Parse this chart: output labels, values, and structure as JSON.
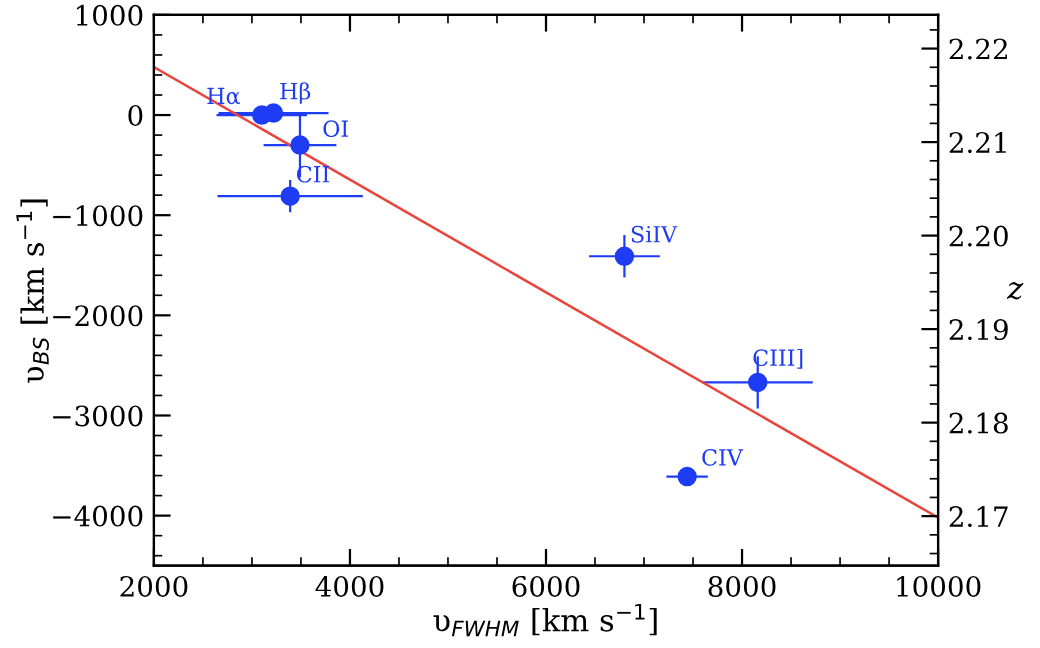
{
  "chart_data": {
    "type": "scatter",
    "xlabel": "υ$_{FWHM}$ [km s$^{−1}$]",
    "ylabel": "υ$_{BS}$ [km s$^{−1}$]",
    "y2label": "z",
    "series": [
      {
        "color": "#1f3cf5",
        "marker": "circle",
        "x": [
          3100,
          3220,
          3490,
          3390,
          6800,
          8160,
          7440
        ],
        "values": [
          0,
          20,
          -300,
          -810,
          -1410,
          -2670,
          -3610
        ],
        "xerrors": [
          450,
          550,
          360,
          730,
          350,
          550,
          200
        ],
        "errors": [
          null,
          null,
          310,
          150,
          200,
          250,
          60
        ]
      },
      {
        "type": "line",
        "color": "#e8453c",
        "marker": "none",
        "line_style": "solid",
        "x": [
          2000,
          10000
        ],
        "values": [
          480,
          -4020
        ]
      }
    ],
    "annotations": [
      {
        "text": "Hα",
        "x": 3100,
        "y": 0
      },
      {
        "text": "Hβ",
        "x": 3220,
        "y": 20
      },
      {
        "text": "OI",
        "x": 3490,
        "y": -300
      },
      {
        "text": "CII",
        "x": 3390,
        "y": -810
      },
      {
        "text": "SiIV",
        "x": 6800,
        "y": -1410
      },
      {
        "text": "CIII]",
        "x": 8160,
        "y": -2670
      },
      {
        "text": "CIV",
        "x": 7440,
        "y": -3610
      }
    ],
    "xlim": [
      2000,
      10000
    ],
    "xticks": [
      2000,
      4000,
      6000,
      8000,
      10000
    ],
    "ylim": [
      -4500,
      1000
    ],
    "yticks": [
      -4000,
      -3000,
      -2000,
      -1000,
      0,
      1000
    ],
    "y2lim": [
      2.1647,
      2.2236
    ],
    "y2ticks": [
      {
        "value": 2.17,
        "label": "2.17"
      },
      {
        "value": 2.18,
        "label": "2.18"
      },
      {
        "value": 2.19,
        "label": "2.19"
      },
      {
        "value": 2.2,
        "label": "2.20"
      },
      {
        "value": 2.21,
        "label": "2.21"
      },
      {
        "value": 2.22,
        "label": "2.22"
      }
    ],
    "grid": false,
    "legend": false
  }
}
